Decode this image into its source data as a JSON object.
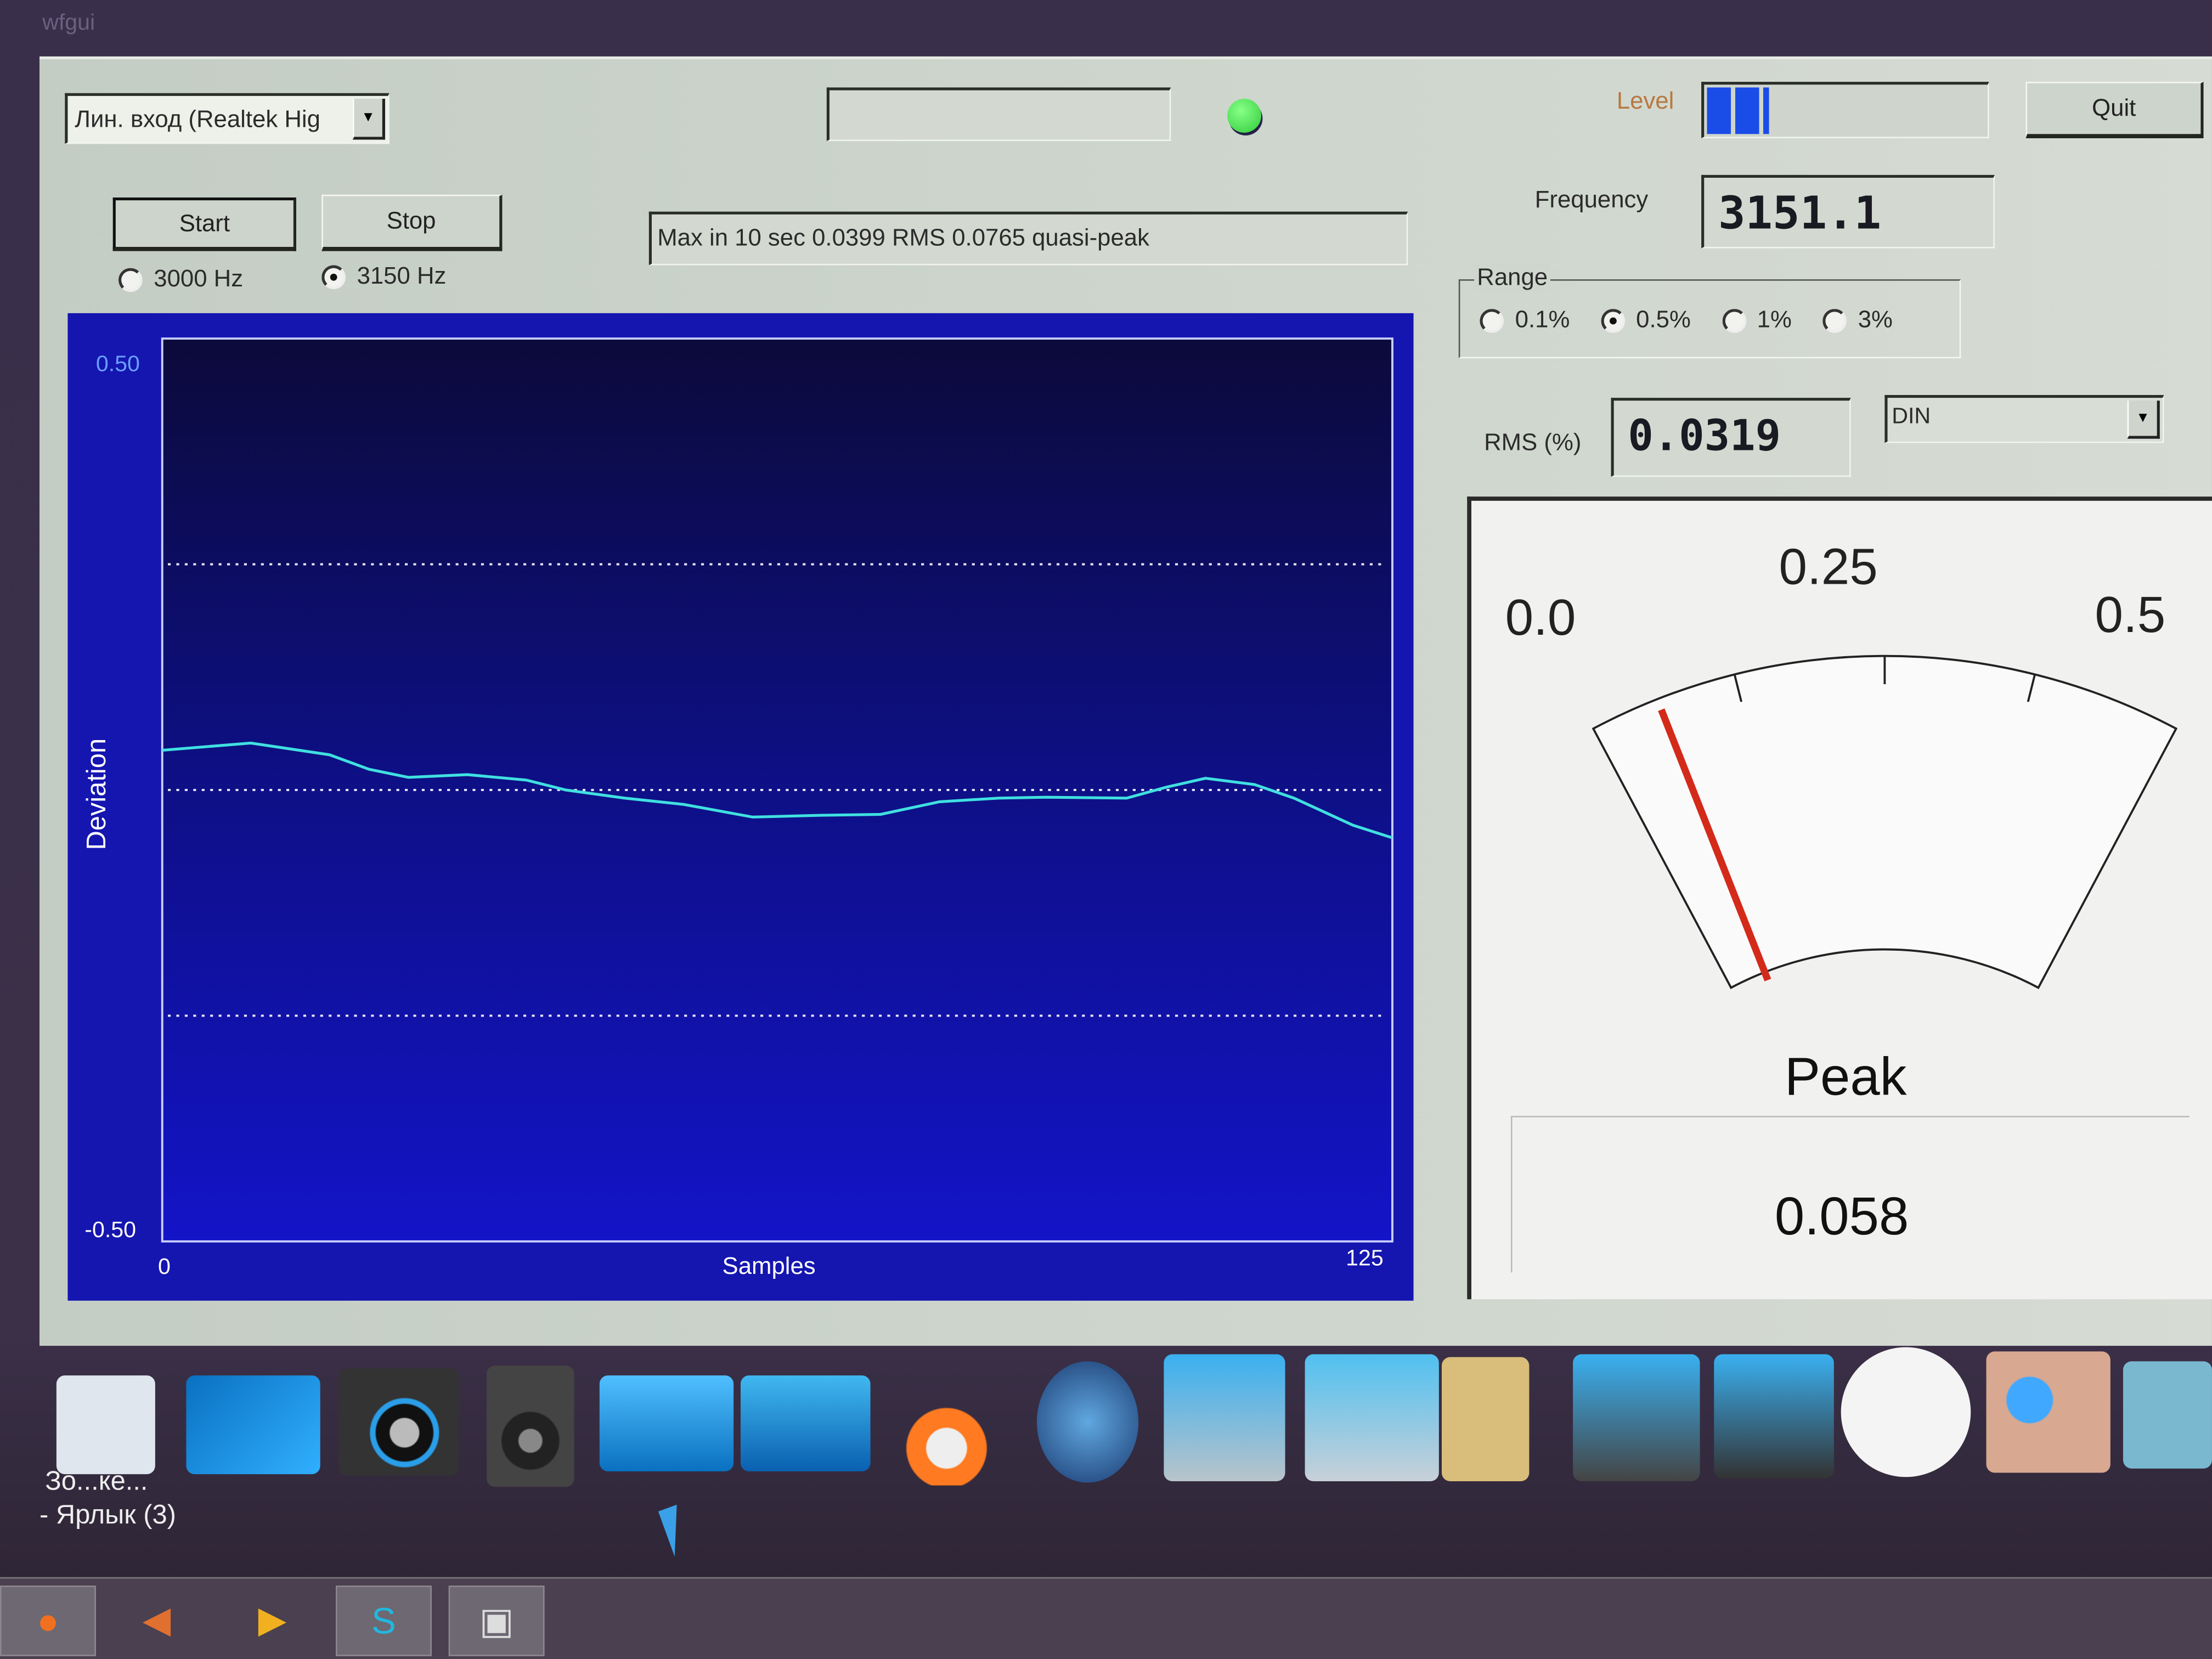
{
  "app": {
    "corner_label": "wfgui"
  },
  "toolbar": {
    "input_device": "Лин. вход (Realtek Hig",
    "status_box": "",
    "status_led_color": "#2fcc3a",
    "level_label": "Level",
    "level_fraction": 0.22,
    "quit_label": "Quit",
    "start_label": "Start",
    "stop_label": "Stop",
    "freq_options": [
      {
        "label": "3000 Hz",
        "selected": false
      },
      {
        "label": "3150 Hz",
        "selected": true
      }
    ],
    "message": "Max in 10 sec 0.0399 RMS 0.0765 quasi-peak"
  },
  "frequency": {
    "label": "Frequency",
    "value": "3151.1"
  },
  "range": {
    "label": "Range",
    "options": [
      {
        "label": "0.1%",
        "selected": false
      },
      {
        "label": "0.5%",
        "selected": true
      },
      {
        "label": "1%",
        "selected": false
      },
      {
        "label": "3%",
        "selected": false
      }
    ]
  },
  "rms": {
    "label": "RMS (%)",
    "value": "0.0319",
    "weighting": "DIN"
  },
  "meter": {
    "scale_labels": [
      "0.0",
      "0.25",
      "0.5"
    ],
    "min": 0.0,
    "max": 0.5,
    "needle_value": 0.058,
    "mode_label": "Peak",
    "readout": "0.058",
    "needle_color": "#d42a1a"
  },
  "chart_data": {
    "type": "line",
    "ylabel": "Deviation",
    "xlabel": "Samples",
    "xlim": [
      0,
      125
    ],
    "ylim": [
      -0.5,
      0.5
    ],
    "y_tick_labels": [
      "0.50",
      "-0.50"
    ],
    "x_tick_labels": [
      "0",
      "125"
    ],
    "gridlines_y": [
      0.25,
      0,
      -0.25
    ],
    "grid": true,
    "line_color": "#40e0e0",
    "x": [
      0,
      9,
      17,
      21,
      25,
      31,
      37,
      41,
      47,
      53,
      60,
      67,
      73,
      79,
      85,
      90,
      98,
      102,
      106,
      111,
      115,
      121,
      125
    ],
    "y": [
      0.044,
      0.052,
      0.039,
      0.023,
      0.014,
      0.017,
      0.011,
      0.0,
      -0.009,
      -0.016,
      -0.03,
      -0.028,
      -0.027,
      -0.013,
      -0.009,
      -0.008,
      -0.009,
      0.003,
      0.013,
      0.006,
      -0.009,
      -0.039,
      -0.053
    ]
  },
  "desktop": {
    "shortcut_label_1": "Зо...ке...",
    "shortcut_label_2": "- Ярлык (3)"
  }
}
